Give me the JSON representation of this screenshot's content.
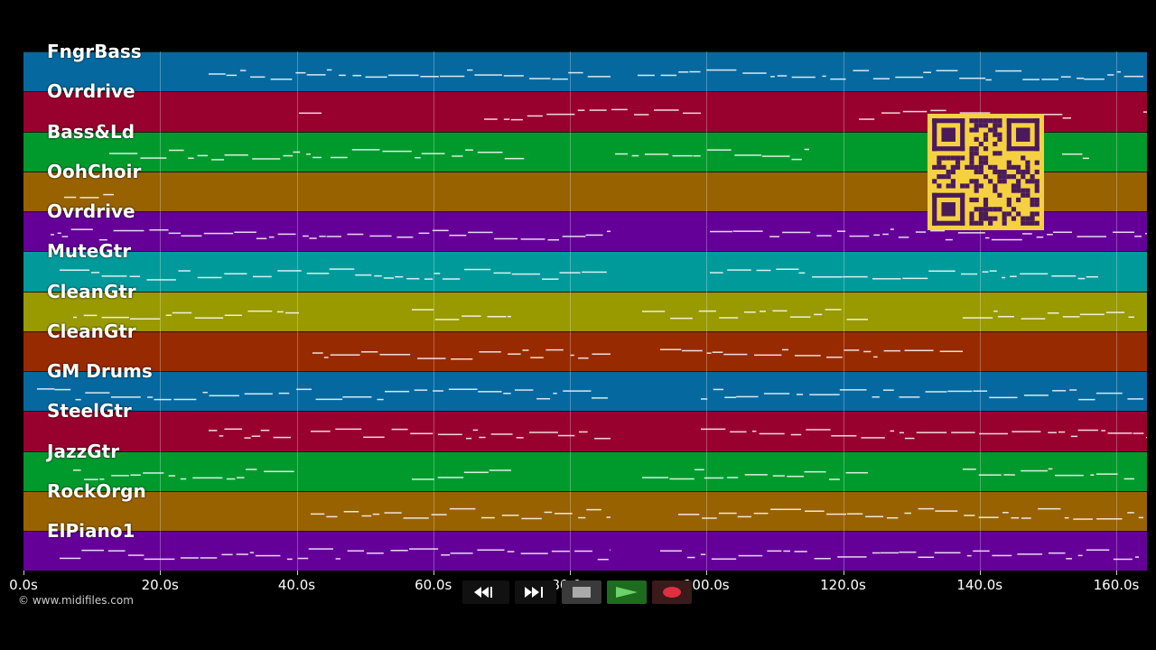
{
  "tracks": [
    {
      "name": "FngrBass",
      "color": "#0569a0"
    },
    {
      "name": "Ovrdrive",
      "color": "#98002e"
    },
    {
      "name": "Bass&Ld",
      "color": "#009a2c"
    },
    {
      "name": "OohChoir",
      "color": "#986200"
    },
    {
      "name": "Ovrdrive",
      "color": "#640098"
    },
    {
      "name": "MuteGtr",
      "color": "#009a9a"
    },
    {
      "name": "CleanGtr",
      "color": "#989a00"
    },
    {
      "name": "CleanGtr",
      "color": "#982a00"
    },
    {
      "name": "GM Drums",
      "color": "#0569a0"
    },
    {
      "name": "SteelGtr",
      "color": "#98002e"
    },
    {
      "name": "JazzGtr",
      "color": "#009a2c"
    },
    {
      "name": "RockOrgn",
      "color": "#986200"
    },
    {
      "name": "ElPiano1",
      "color": "#640098"
    }
  ],
  "time_axis": {
    "ticks": [
      "0.0s",
      "20.0s",
      "40.0s",
      "60.0s",
      "80.0s",
      "100.0s",
      "120.0s",
      "140.0s",
      "160.0s"
    ],
    "tick_values": [
      0,
      20,
      40,
      60,
      80,
      100,
      120,
      140,
      160
    ],
    "max_seconds": 165
  },
  "copyright": "© www.midifiles.com",
  "transport": {
    "rewind_icon": "rewind-icon",
    "fast_forward_icon": "fast-forward-icon",
    "stop_icon": "stop-icon",
    "play_icon": "play-icon",
    "record_icon": "record-icon"
  },
  "qr_code": {
    "color": "#f5d142",
    "dark": "#4a1a5a"
  }
}
